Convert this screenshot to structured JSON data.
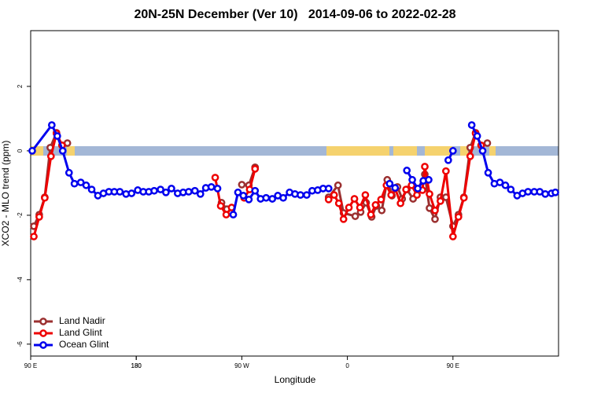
{
  "chart_data": {
    "type": "line",
    "title": "20N-25N December (Ver 10)   2014-09-06 to 2022-02-28",
    "xlabel": "Longitude",
    "ylabel": "XCO2 - MLO trend (ppm)",
    "xlim": [
      90,
      540
    ],
    "ylim": [
      -6.37,
      3.73
    ],
    "xticks": [
      {
        "value": 90,
        "label": "90 E"
      },
      180,
      {
        "value": 270,
        "label": "90 W"
      },
      {
        "value": 360,
        "label": "0"
      },
      {
        "value": 450,
        "label": "90 E"
      },
      180
    ],
    "yticks": [
      -6,
      -4,
      -2,
      0,
      2
    ],
    "legend": "bottom-left",
    "series": [
      {
        "name": "Land Nadir",
        "color": "#9b3030",
        "x": [
          92.7,
          97.3,
          102,
          106.7,
          112,
          116.7,
          121.3,
          200,
          252.7,
          257.3,
          265,
          270,
          276,
          281.3,
          310,
          344,
          352,
          356.7,
          366.7,
          371.3,
          376,
          380.7,
          384.7,
          389.3,
          394,
          398,
          402.7,
          406.7,
          410.7,
          416,
          420,
          426,
          430,
          434.7,
          439.3,
          444,
          450,
          454.7,
          459.3,
          464.7,
          469.3,
          474,
          479.3
        ],
        "values": [
          -2.34,
          -1.98,
          -1.44,
          0.1,
          0.56,
          0.17,
          0.24,
          null,
          -1.61,
          -1.81,
          null,
          -1.05,
          -1.07,
          -0.51,
          null,
          -1.44,
          -1.07,
          -1.93,
          -2.03,
          -1.9,
          -1.61,
          -2.05,
          -1.71,
          -1.85,
          -0.9,
          -1.39,
          -1.12,
          -1.49,
          -1.2,
          -1.49,
          -1.22,
          -0.73,
          -1.78,
          -2.12,
          -1.44,
          -1.44,
          -2.34,
          -1.98,
          -1.44,
          0.1,
          0.56,
          0.17,
          0.24
        ]
      },
      {
        "name": "Land Glint",
        "color": "#ee0000",
        "x": [
          92.7,
          97.3,
          102,
          107.3,
          112,
          116.7,
          200,
          247.3,
          252,
          256.7,
          261.3,
          266,
          272,
          276.7,
          281.3,
          310,
          344,
          348.7,
          352.7,
          356.7,
          361.3,
          366,
          370.7,
          375.3,
          380,
          384,
          388.7,
          393.3,
          397.3,
          400.7,
          405.3,
          410,
          414.7,
          419.3,
          424,
          426,
          430,
          434.7,
          439.3,
          444,
          450,
          454.7,
          459.3,
          464.7,
          469.3,
          474
        ],
        "values": [
          -2.66,
          -2.05,
          -1.46,
          -0.17,
          0.54,
          0.17,
          null,
          -0.83,
          -1.71,
          -1.98,
          -1.76,
          null,
          -1.46,
          -1.2,
          -0.56,
          null,
          -1.51,
          -1.37,
          -1.63,
          -2.12,
          -1.76,
          -1.49,
          -1.76,
          -1.37,
          -1.98,
          -1.68,
          -1.51,
          -1.07,
          -1.37,
          -1.17,
          -1.63,
          -1.2,
          -1.07,
          -1.37,
          -1.22,
          -0.49,
          -1.34,
          -1.85,
          -1.56,
          -0.63,
          -2.66,
          -2.05,
          -1.46,
          -0.17,
          0.54,
          0.17
        ]
      },
      {
        "name": "Ocean Glint",
        "color": "#0000ee",
        "x": [
          91.3,
          108,
          112.7,
          117.3,
          122.7,
          127.3,
          132.7,
          137.3,
          142,
          147.3,
          152,
          156.7,
          161.3,
          166,
          171.3,
          176,
          181.3,
          186,
          190.7,
          195.3,
          200.7,
          205.3,
          210,
          215.3,
          220,
          224.7,
          230,
          234.7,
          239.3,
          244,
          249.3,
          256,
          262.7,
          266.7,
          271.3,
          276,
          281.3,
          286,
          290.7,
          296,
          300.7,
          305.3,
          310.7,
          315.3,
          320,
          325.3,
          330,
          334.7,
          339.3,
          344,
          370,
          396,
          400.7,
          405,
          410.7,
          415.3,
          420,
          424.7,
          429.3,
          438,
          446,
          450,
          458,
          466,
          470.7,
          475.3,
          480,
          485.3,
          490,
          494.7,
          499.3,
          504.7,
          509.3,
          514,
          519.3,
          524,
          528.7,
          534,
          537.3
        ],
        "values": [
          0,
          0.8,
          0.46,
          0,
          -0.68,
          -1.02,
          -0.98,
          -1.07,
          -1.2,
          -1.39,
          -1.32,
          -1.27,
          -1.27,
          -1.27,
          -1.34,
          -1.32,
          -1.22,
          -1.27,
          -1.27,
          -1.24,
          -1.2,
          -1.29,
          -1.17,
          -1.32,
          -1.29,
          -1.27,
          -1.24,
          -1.34,
          -1.15,
          -1.12,
          -1.17,
          null,
          -1.98,
          -1.29,
          -1.39,
          -1.51,
          -1.24,
          -1.49,
          -1.46,
          -1.49,
          -1.39,
          -1.46,
          -1.29,
          -1.34,
          -1.37,
          -1.37,
          -1.24,
          -1.22,
          -1.17,
          -1.17,
          null,
          -1.02,
          -1.15,
          null,
          -0.61,
          -0.9,
          -1.17,
          -0.93,
          -0.9,
          null,
          -0.29,
          0,
          null,
          0.8,
          0.46,
          0,
          -0.68,
          -1.02,
          -0.98,
          -1.07,
          -1.2,
          -1.39,
          -1.32,
          -1.27,
          -1.27,
          -1.27,
          -1.34,
          -1.32,
          -1.29
        ]
      }
    ]
  }
}
